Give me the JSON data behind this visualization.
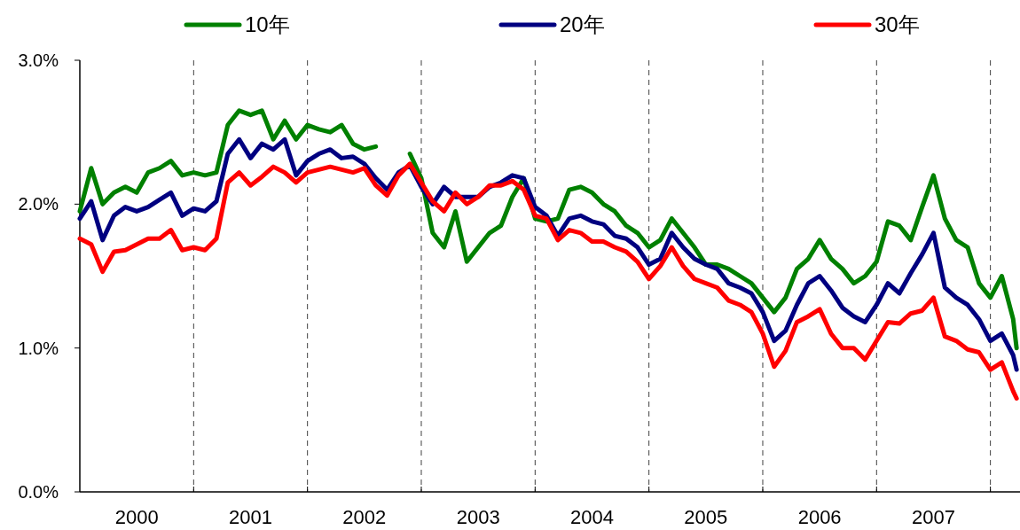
{
  "chart_data": {
    "type": "line",
    "legend": "top",
    "line_style": "solid",
    "xlim": [
      2000,
      2008.26
    ],
    "ylim": [
      0,
      3
    ],
    "yticks": [
      {
        "value": 0,
        "label": "0.0%"
      },
      {
        "value": 1,
        "label": "1.0%"
      },
      {
        "value": 2,
        "label": "2.0%"
      },
      {
        "value": 3,
        "label": "3.0%"
      }
    ],
    "xticks": [
      {
        "value": 2000.5,
        "label": "2000"
      },
      {
        "value": 2001,
        "label": null
      },
      {
        "value": 2001.5,
        "label": "2001"
      },
      {
        "value": 2002,
        "label": null
      },
      {
        "value": 2002.5,
        "label": "2002"
      },
      {
        "value": 2003,
        "label": null
      },
      {
        "value": 2003.5,
        "label": "2003"
      },
      {
        "value": 2004,
        "label": null
      },
      {
        "value": 2004.5,
        "label": "2004"
      },
      {
        "value": 2005,
        "label": null
      },
      {
        "value": 2005.5,
        "label": "2005"
      },
      {
        "value": 2006,
        "label": null
      },
      {
        "value": 2006.5,
        "label": "2006"
      },
      {
        "value": 2007,
        "label": null
      },
      {
        "value": 2007.5,
        "label": "2007"
      },
      {
        "value": 2008,
        "label": null
      }
    ],
    "ref_lines": [
      {
        "axis": "x",
        "value": 2001,
        "color": "#404040",
        "line_style": "dashed"
      },
      {
        "axis": "x",
        "value": 2002,
        "color": "#404040",
        "line_style": "dashed"
      },
      {
        "axis": "x",
        "value": 2003,
        "color": "#404040",
        "line_style": "dashed"
      },
      {
        "axis": "x",
        "value": 2004,
        "color": "#404040",
        "line_style": "dashed"
      },
      {
        "axis": "x",
        "value": 2005,
        "color": "#404040",
        "line_style": "dashed"
      },
      {
        "axis": "x",
        "value": 2006,
        "color": "#404040",
        "line_style": "dashed"
      },
      {
        "axis": "x",
        "value": 2007,
        "color": "#404040",
        "line_style": "dashed"
      },
      {
        "axis": "x",
        "value": 2008,
        "color": "#404040",
        "line_style": "dashed"
      }
    ],
    "x": [
      2000.0,
      2000.1,
      2000.2,
      2000.3,
      2000.4,
      2000.5,
      2000.6,
      2000.7,
      2000.8,
      2000.9,
      2001.0,
      2001.1,
      2001.2,
      2001.3,
      2001.4,
      2001.5,
      2001.6,
      2001.7,
      2001.8,
      2001.9,
      2002.0,
      2002.1,
      2002.2,
      2002.3,
      2002.4,
      2002.5,
      2002.6,
      2002.7,
      2002.8,
      2002.9,
      2003.0,
      2003.1,
      2003.2,
      2003.3,
      2003.4,
      2003.5,
      2003.6,
      2003.7,
      2003.8,
      2003.9,
      2004.0,
      2004.1,
      2004.2,
      2004.3,
      2004.4,
      2004.5,
      2004.6,
      2004.7,
      2004.8,
      2004.9,
      2005.0,
      2005.1,
      2005.2,
      2005.3,
      2005.4,
      2005.5,
      2005.6,
      2005.7,
      2005.8,
      2005.9,
      2006.0,
      2006.1,
      2006.2,
      2006.3,
      2006.4,
      2006.5,
      2006.6,
      2006.7,
      2006.8,
      2006.9,
      2007.0,
      2007.1,
      2007.2,
      2007.3,
      2007.4,
      2007.5,
      2007.6,
      2007.7,
      2007.8,
      2007.9,
      2008.0,
      2008.1,
      2008.2,
      2008.23
    ],
    "series": [
      {
        "name": "10年",
        "color": "#008000",
        "values": [
          1.95,
          2.25,
          2.0,
          2.08,
          2.12,
          2.08,
          2.22,
          2.25,
          2.3,
          2.2,
          2.22,
          2.2,
          2.22,
          2.55,
          2.65,
          2.62,
          2.65,
          2.45,
          2.58,
          2.45,
          2.55,
          2.52,
          2.5,
          2.55,
          2.42,
          2.38,
          2.4,
          null,
          null,
          2.35,
          2.18,
          1.8,
          1.7,
          1.95,
          1.6,
          1.7,
          1.8,
          1.85,
          2.05,
          2.18,
          1.9,
          1.88,
          1.9,
          2.1,
          2.12,
          2.08,
          2.0,
          1.95,
          1.85,
          1.8,
          1.7,
          1.75,
          1.9,
          1.8,
          1.7,
          1.58,
          1.58,
          1.55,
          1.5,
          1.45,
          1.35,
          1.25,
          1.35,
          1.55,
          1.62,
          1.75,
          1.62,
          1.55,
          1.45,
          1.5,
          1.6,
          1.88,
          1.85,
          1.75,
          1.98,
          2.2,
          1.9,
          1.75,
          1.7,
          1.45,
          1.35,
          1.5,
          1.2,
          1.0
        ]
      },
      {
        "name": "20年",
        "color": "#000080",
        "values": [
          1.9,
          2.02,
          1.75,
          1.92,
          1.98,
          1.95,
          1.98,
          2.03,
          2.08,
          1.92,
          1.97,
          1.95,
          2.02,
          2.35,
          2.45,
          2.32,
          2.42,
          2.38,
          2.45,
          2.2,
          2.3,
          2.35,
          2.38,
          2.32,
          2.33,
          2.28,
          2.18,
          2.1,
          2.22,
          2.27,
          2.12,
          2.0,
          2.12,
          2.05,
          2.05,
          2.05,
          2.12,
          2.15,
          2.2,
          2.18,
          1.98,
          1.92,
          1.78,
          1.9,
          1.92,
          1.88,
          1.86,
          1.78,
          1.76,
          1.7,
          1.58,
          1.62,
          1.8,
          1.7,
          1.62,
          1.58,
          1.55,
          1.45,
          1.42,
          1.38,
          1.25,
          1.05,
          1.12,
          1.3,
          1.45,
          1.5,
          1.4,
          1.28,
          1.22,
          1.18,
          1.3,
          1.45,
          1.38,
          1.52,
          1.65,
          1.8,
          1.42,
          1.35,
          1.3,
          1.2,
          1.05,
          1.1,
          0.95,
          0.85
        ]
      },
      {
        "name": "30年",
        "color": "#ff0000",
        "values": [
          1.76,
          1.72,
          1.53,
          1.67,
          1.68,
          1.72,
          1.76,
          1.76,
          1.82,
          1.68,
          1.7,
          1.68,
          1.76,
          2.15,
          2.22,
          2.13,
          2.19,
          2.26,
          2.22,
          2.15,
          2.22,
          2.24,
          2.26,
          2.24,
          2.22,
          2.25,
          2.13,
          2.06,
          2.2,
          2.28,
          2.15,
          2.02,
          1.95,
          2.08,
          2.0,
          2.05,
          2.13,
          2.13,
          2.16,
          2.1,
          1.92,
          1.9,
          1.75,
          1.82,
          1.8,
          1.74,
          1.74,
          1.7,
          1.67,
          1.6,
          1.48,
          1.57,
          1.7,
          1.57,
          1.48,
          1.45,
          1.42,
          1.33,
          1.3,
          1.25,
          1.1,
          0.87,
          0.98,
          1.18,
          1.22,
          1.27,
          1.1,
          1.0,
          1.0,
          0.92,
          1.05,
          1.18,
          1.17,
          1.24,
          1.26,
          1.35,
          1.08,
          1.05,
          0.99,
          0.97,
          0.85,
          0.9,
          0.7,
          0.65
        ]
      }
    ]
  }
}
